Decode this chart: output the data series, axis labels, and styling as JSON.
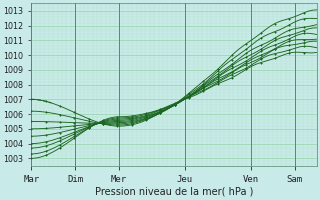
{
  "xlabel": "Pression niveau de la mer( hPa )",
  "ylim": [
    1002.5,
    1013.5
  ],
  "yticks": [
    1003,
    1004,
    1005,
    1006,
    1007,
    1008,
    1009,
    1010,
    1011,
    1012,
    1013
  ],
  "background_color": "#c8eae8",
  "grid_color_major": "#88cc99",
  "grid_color_minor": "#aaddbb",
  "line_color": "#1a6620",
  "days": [
    "Mar",
    "Dim",
    "Mer",
    "Jeu",
    "Ven",
    "Sam"
  ],
  "day_positions": [
    0.0,
    1.0,
    2.0,
    3.5,
    5.0,
    6.0
  ],
  "total_days": 6.5,
  "num_lines": 9,
  "start_values": [
    1007.0,
    1006.2,
    1005.5,
    1005.0,
    1004.5,
    1004.0,
    1003.7,
    1003.3,
    1003.0
  ],
  "end_values": [
    1013.0,
    1012.5,
    1012.0,
    1011.7,
    1011.4,
    1011.1,
    1010.9,
    1010.6,
    1010.3
  ],
  "converge_value": 1005.5,
  "converge_day": 2.0,
  "figsize": [
    3.2,
    2.0
  ],
  "dpi": 100
}
